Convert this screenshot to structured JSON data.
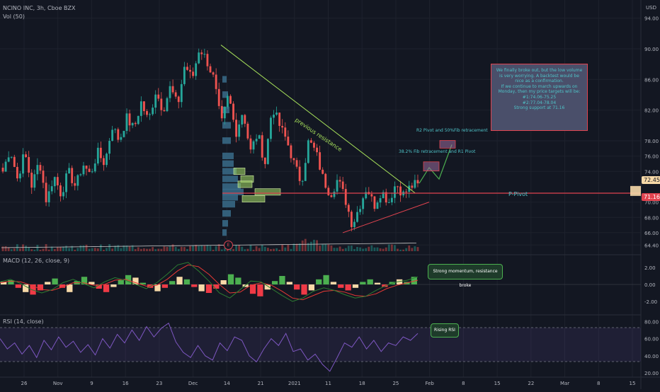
{
  "header": {
    "symbol": "NCINO INC, 3h, Cboe BZX",
    "volume_label": "Vol (50)"
  },
  "price_axis": {
    "currency": "USD",
    "current_price": "72.45",
    "pivot_price": "71.16"
  },
  "indicators": {
    "macd_title": "MACD (12, 26, close, 9)",
    "rsi_title": "RSI (14, close)"
  },
  "annotations": {
    "note_box": "We finally broke out, but the low volume is very worrying. A backtest would be nice as a confirmation.\nIf we continue to march upwards on Monday, then my price targets will be:\n#1:74.06-75.25\n#2:77.04-78.04\nStrong support at 71.16",
    "target1_label": "38.2% Fib retracement and R1 Pivot",
    "target2_label": "R2 Pivot and 50%Fib retracement",
    "resistance_label": "previous resistance",
    "pivot_label": "P-Pivot",
    "earnings_marker": "E",
    "macd_callout": "Strong momentum, resistance broke",
    "rsi_callout": "Rising RSI"
  },
  "colors": {
    "background": "#131722",
    "up": "#26a69a",
    "down": "#ef5350",
    "trendline": "#a6e05a",
    "pivot": "#e0434f",
    "volume_profile_up": "#3a6c8a",
    "volume_profile_hl": "#9cd063",
    "rsi_line": "#7e57c2",
    "note_box": "#4a4f6a"
  },
  "chart_data": [
    {
      "type": "candlestick",
      "panel": "price",
      "x_tick_labels": [
        "26",
        "Nov",
        "9",
        "16",
        "23",
        "Dec",
        "14",
        "21",
        "2021",
        "11",
        "18",
        "25",
        "Feb",
        "8",
        "15",
        "22",
        "Mar",
        "8",
        "15"
      ],
      "y_tick_labels": [
        "94.00",
        "90.00",
        "86.00",
        "82.00",
        "78.00",
        "76.00",
        "74.00",
        "70.00",
        "68.00",
        "66.00",
        "64.40"
      ],
      "ylim": [
        63.5,
        96
      ],
      "close_path": [
        74.0,
        77.0,
        73.0,
        76.5,
        72.0,
        75.5,
        70.0,
        73.5,
        71.0,
        74.0,
        72.0,
        75.0,
        73.5,
        76.5,
        75.0,
        80.0,
        78.0,
        81.0,
        79.5,
        83.0,
        80.5,
        84.5,
        82.0,
        85.0,
        82.5,
        88.0,
        86.0,
        90.2,
        88.5,
        86.0,
        80.0,
        84.0,
        79.0,
        82.0,
        76.5,
        79.0,
        75.0,
        82.5,
        80.0,
        78.0,
        75.0,
        72.5,
        78.0,
        76.5,
        73.0,
        71.0,
        73.0,
        70.5,
        67.0,
        69.5,
        72.0,
        69.5,
        71.5,
        70.0,
        72.5,
        71.0,
        72.0,
        72.45
      ],
      "projection": [
        72.45,
        74.5,
        73.0,
        77.5
      ],
      "resistance_line": {
        "from": 90.5,
        "to": 71.2
      },
      "support_line": {
        "from": 66.0,
        "to": 70.0
      },
      "pivot_level": 71.16,
      "target_zones": [
        [
          74.06,
          75.25
        ],
        [
          77.04,
          78.04
        ]
      ]
    },
    {
      "type": "bar",
      "panel": "macd",
      "y_tick_labels": [
        "2.00",
        "0.00",
        "-2.00"
      ],
      "ylim": [
        -3,
        3
      ],
      "histogram": [
        0.3,
        0.5,
        -0.4,
        -0.9,
        -1.2,
        -0.7,
        0.3,
        0.7,
        -0.4,
        -0.9,
        0.4,
        0.9,
        0.3,
        -0.5,
        -0.9,
        -0.3,
        0.5,
        1.1,
        0.8,
        0.2,
        -0.4,
        -0.8,
        -0.4,
        0.4,
        0.9,
        0.6,
        -0.3,
        -0.8,
        -1.0,
        -0.5,
        0.5,
        1.2,
        0.8,
        -0.3,
        -1.1,
        -1.4,
        -0.6,
        0.4,
        1.0,
        0.3,
        -0.6,
        -1.2,
        -0.7,
        0.6,
        1.1,
        0.3,
        -0.4,
        -0.7,
        -0.4,
        0.3,
        0.6,
        0.2,
        -0.3,
        0.3,
        0.6,
        0.3,
        0.9
      ],
      "macd_line": [
        0.3,
        0.6,
        0.1,
        -0.6,
        -1.0,
        -0.6,
        0.2,
        0.6,
        0.1,
        -0.4,
        0.3,
        0.8,
        0.5,
        0.0,
        -0.5,
        0.2,
        1.2,
        2.3,
        2.6,
        1.6,
        0.4,
        -1.0,
        -1.6,
        -0.6,
        0.4,
        0.3,
        -0.5,
        -1.3,
        -2.0,
        -1.6,
        -0.8,
        -0.4,
        -0.7,
        -1.2,
        -1.6,
        -1.4,
        -0.7,
        -0.1,
        0.3,
        0.5,
        0.9
      ],
      "signal_line": [
        0.2,
        0.4,
        0.3,
        -0.1,
        -0.6,
        -0.7,
        -0.3,
        0.2,
        0.2,
        -0.1,
        0.0,
        0.5,
        0.6,
        0.2,
        -0.2,
        -0.1,
        0.6,
        1.6,
        2.3,
        2.1,
        1.2,
        0.0,
        -1.0,
        -0.9,
        -0.1,
        0.2,
        -0.1,
        -0.8,
        -1.6,
        -1.8,
        -1.3,
        -0.8,
        -0.7,
        -0.9,
        -1.3,
        -1.4,
        -1.1,
        -0.5,
        -0.1,
        0.2,
        0.5
      ]
    },
    {
      "type": "line",
      "panel": "rsi",
      "y_tick_labels": [
        "80.00",
        "60.00",
        "40.00",
        "20.00"
      ],
      "ylim": [
        16,
        86
      ],
      "band": [
        30,
        70
      ],
      "values": [
        60,
        48,
        55,
        42,
        52,
        38,
        58,
        47,
        62,
        50,
        57,
        44,
        53,
        41,
        60,
        49,
        65,
        55,
        70,
        58,
        74,
        62,
        72,
        78,
        56,
        44,
        38,
        52,
        40,
        35,
        55,
        46,
        62,
        58,
        40,
        33,
        48,
        60,
        52,
        66,
        45,
        48,
        35,
        42,
        30,
        22,
        38,
        55,
        50,
        62,
        48,
        58,
        45,
        55,
        52,
        62,
        58,
        66
      ]
    }
  ]
}
